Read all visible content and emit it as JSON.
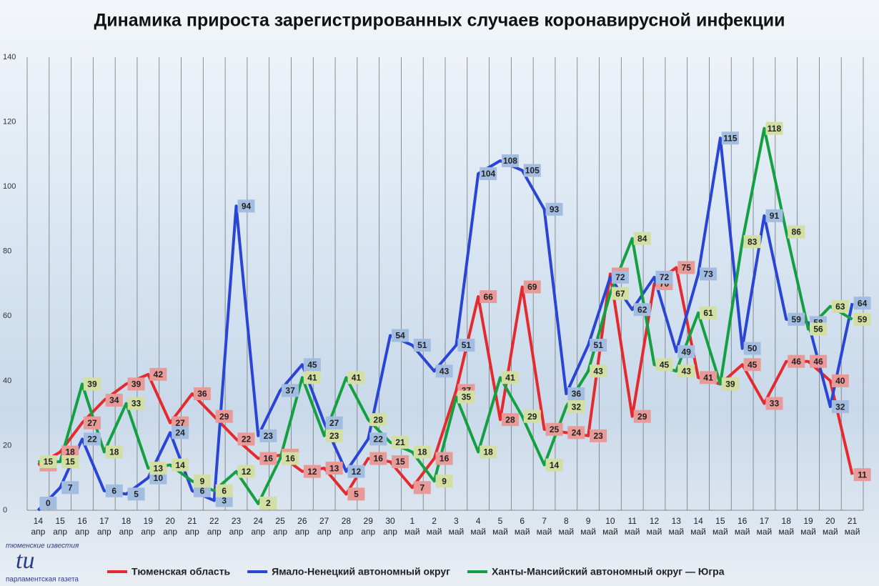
{
  "chart_data": {
    "type": "line",
    "title": "Динамика прироста зарегистрированных случаев коронавирусной инфекции",
    "categories": [
      "14 апр",
      "15 апр",
      "16 апр",
      "17 апр",
      "18 апр",
      "19 апр",
      "20 апр",
      "21 апр",
      "22 апр",
      "23 апр",
      "24 апр",
      "25 апр",
      "26 апр",
      "27 апр",
      "28 апр",
      "29 апр",
      "30 апр",
      "1 май",
      "2 май",
      "3 май",
      "4 май",
      "5 май",
      "6 май",
      "7 май",
      "8 май",
      "9 май",
      "10 май",
      "11 май",
      "12 май",
      "13 май",
      "14 май",
      "15 май",
      "16 май",
      "17 май",
      "18 май",
      "19 май",
      "20 май",
      "21 май"
    ],
    "series": [
      {
        "name": "Тюменская область",
        "color": "#e52a2e",
        "label_color": "#e79a98",
        "values": [
          14,
          18,
          27,
          34,
          39,
          42,
          27,
          36,
          29,
          22,
          16,
          17,
          12,
          13,
          5,
          16,
          15,
          7,
          16,
          37,
          66,
          28,
          69,
          25,
          24,
          23,
          73,
          29,
          70,
          75,
          41,
          39,
          45,
          33,
          46,
          46,
          40,
          11
        ]
      },
      {
        "name": "Ямало-Ненецкий автономный округ",
        "color": "#2a44d6",
        "label_color": "#a3bde0",
        "values": [
          0,
          7,
          22,
          6,
          5,
          10,
          24,
          6,
          3,
          94,
          23,
          37,
          45,
          27,
          12,
          22,
          54,
          51,
          43,
          51,
          104,
          108,
          105,
          93,
          36,
          51,
          72,
          62,
          72,
          49,
          73,
          115,
          50,
          91,
          59,
          58,
          32,
          64
        ]
      },
      {
        "name": "Ханты-Мансийский автономный округ — Югра",
        "color": "#14a041",
        "label_color": "#d3dea3",
        "values": [
          15,
          15,
          39,
          18,
          33,
          13,
          14,
          9,
          6,
          12,
          2,
          16,
          41,
          23,
          41,
          28,
          21,
          18,
          9,
          35,
          18,
          41,
          29,
          14,
          32,
          43,
          67,
          84,
          45,
          43,
          61,
          39,
          83,
          118,
          86,
          56,
          63,
          59
        ]
      }
    ],
    "ylim": [
      0,
      140
    ],
    "yticks": [
      0,
      20,
      40,
      60,
      80,
      100,
      120,
      140
    ],
    "grid": true,
    "annotations": [
      "тюменские известия",
      "tu",
      "парламентская газета"
    ]
  }
}
